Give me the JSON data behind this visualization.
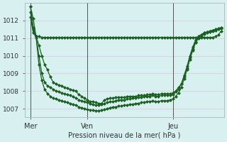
{
  "bg_color": "#d8f0f0",
  "grid_color": "#d8c8d8",
  "line_color": "#1a6020",
  "marker_color": "#1a6020",
  "ylabel_text": "Pression niveau de la mer( hPa )",
  "yticks": [
    1007,
    1008,
    1009,
    1010,
    1011,
    1012
  ],
  "ymin": 1006.5,
  "ymax": 1013.0,
  "xtick_labels": [
    "Mer",
    "Ven",
    "Jeu"
  ],
  "xtick_positions": [
    0,
    20,
    50
  ],
  "xmin": -2,
  "xmax": 68,
  "vline_positions": [
    0,
    20,
    50
  ],
  "line1": [
    1012.8,
    1012.1,
    1011.1,
    1011.1,
    1011.05,
    1011.05,
    1011.05,
    1011.05,
    1011.05,
    1011.05,
    1011.05,
    1011.05,
    1011.05,
    1011.05,
    1011.05,
    1011.05,
    1011.05,
    1011.05,
    1011.05,
    1011.05,
    1011.05,
    1011.05,
    1011.05,
    1011.05,
    1011.05,
    1011.05,
    1011.05,
    1011.05,
    1011.05,
    1011.05,
    1011.05,
    1011.05,
    1011.05,
    1011.05,
    1011.05,
    1011.05,
    1011.05,
    1011.05,
    1011.05,
    1011.05,
    1011.05,
    1011.05,
    1011.05,
    1011.05,
    1011.05,
    1011.05,
    1011.05,
    1011.05,
    1011.05,
    1011.05,
    1011.05,
    1011.05,
    1011.05,
    1011.05,
    1011.05,
    1011.05,
    1011.05,
    1011.05,
    1011.05,
    1011.05,
    1011.05,
    1011.05,
    1011.05,
    1011.05,
    1011.05,
    1011.1,
    1011.2,
    1011.4
  ],
  "line2": [
    1012.8,
    1011.6,
    1011.1,
    1010.6,
    1010.0,
    1009.5,
    1009.2,
    1008.8,
    1008.5,
    1008.4,
    1008.35,
    1008.3,
    1008.2,
    1008.15,
    1008.1,
    1008.05,
    1008.0,
    1007.8,
    1007.7,
    1007.6,
    1007.5,
    1007.4,
    1007.4,
    1007.35,
    1007.3,
    1007.3,
    1007.5,
    1007.55,
    1007.6,
    1007.6,
    1007.65,
    1007.65,
    1007.65,
    1007.65,
    1007.7,
    1007.7,
    1007.7,
    1007.7,
    1007.75,
    1007.75,
    1007.75,
    1007.8,
    1007.8,
    1007.85,
    1007.8,
    1007.8,
    1007.85,
    1007.85,
    1007.85,
    1007.85,
    1007.9,
    1008.0,
    1008.2,
    1008.4,
    1008.8,
    1009.3,
    1009.9,
    1010.4,
    1010.8,
    1011.1,
    1011.2,
    1011.3,
    1011.35,
    1011.4,
    1011.45,
    1011.5,
    1011.55,
    1011.6
  ],
  "line3": [
    1012.5,
    1011.5,
    1011.1,
    1010.0,
    1009.0,
    1008.5,
    1008.3,
    1008.2,
    1008.1,
    1008.0,
    1007.95,
    1007.9,
    1007.85,
    1007.8,
    1007.75,
    1007.7,
    1007.6,
    1007.5,
    1007.45,
    1007.4,
    1007.35,
    1007.3,
    1007.25,
    1007.2,
    1007.2,
    1007.25,
    1007.3,
    1007.35,
    1007.4,
    1007.4,
    1007.45,
    1007.5,
    1007.5,
    1007.5,
    1007.55,
    1007.55,
    1007.6,
    1007.6,
    1007.65,
    1007.65,
    1007.7,
    1007.7,
    1007.7,
    1007.75,
    1007.7,
    1007.7,
    1007.75,
    1007.75,
    1007.75,
    1007.75,
    1007.8,
    1007.95,
    1008.1,
    1008.4,
    1008.9,
    1009.4,
    1010.0,
    1010.5,
    1010.9,
    1011.1,
    1011.2,
    1011.3,
    1011.35,
    1011.4,
    1011.45,
    1011.5,
    1011.55,
    1011.6
  ],
  "line4": [
    1012.2,
    1011.3,
    1011.05,
    1009.5,
    1008.6,
    1008.1,
    1007.85,
    1007.7,
    1007.6,
    1007.55,
    1007.5,
    1007.45,
    1007.4,
    1007.35,
    1007.3,
    1007.25,
    1007.2,
    1007.1,
    1007.05,
    1007.0,
    1006.95,
    1006.92,
    1006.9,
    1006.88,
    1006.88,
    1006.9,
    1006.95,
    1007.0,
    1007.05,
    1007.1,
    1007.1,
    1007.15,
    1007.15,
    1007.2,
    1007.2,
    1007.25,
    1007.25,
    1007.3,
    1007.3,
    1007.35,
    1007.35,
    1007.4,
    1007.4,
    1007.45,
    1007.4,
    1007.4,
    1007.45,
    1007.45,
    1007.45,
    1007.5,
    1007.55,
    1007.7,
    1007.9,
    1008.2,
    1008.7,
    1009.2,
    1009.8,
    1010.3,
    1010.75,
    1011.0,
    1011.1,
    1011.25,
    1011.3,
    1011.35,
    1011.4,
    1011.45,
    1011.5,
    1011.55
  ]
}
